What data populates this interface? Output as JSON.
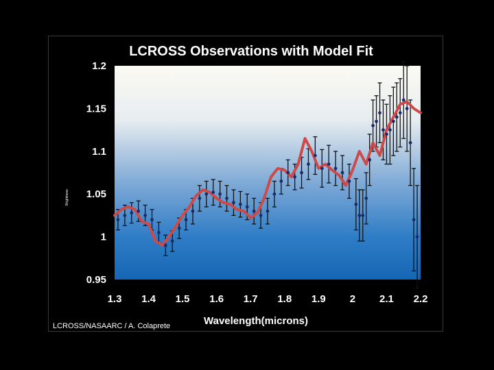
{
  "chart_data": {
    "type": "line",
    "title": "LCROSS Observations with Model Fit",
    "xlabel": "Wavelength(microns)",
    "ylabel": "Brightness",
    "credit": "LCROSS/NASAARC / A. Colaprete",
    "xlim": [
      1.3,
      2.2
    ],
    "ylim": [
      0.95,
      1.2
    ],
    "x_ticks": [
      "1.3",
      "1.4",
      "1.5",
      "1.6",
      "1.7",
      "1.8",
      "1.9",
      "2",
      "2.1",
      "2.2"
    ],
    "y_ticks": [
      "0.95",
      "1",
      "1.05",
      "1.1",
      "1.15",
      "1.2"
    ],
    "grid": false,
    "legend": "none",
    "colors": {
      "model": "#cc4a4a",
      "observed": "#1a2d6b",
      "error_bar": "#111111"
    },
    "series": [
      {
        "kind": "observed",
        "x": [
          1.31,
          1.33,
          1.35,
          1.37,
          1.39,
          1.41,
          1.43,
          1.45,
          1.47,
          1.49,
          1.51,
          1.53,
          1.55,
          1.57,
          1.59,
          1.61,
          1.63,
          1.65,
          1.67,
          1.69,
          1.71,
          1.73,
          1.75,
          1.77,
          1.79,
          1.81,
          1.83,
          1.85,
          1.87,
          1.89,
          1.91,
          1.93,
          1.95,
          1.97,
          1.99,
          2.01,
          2.02,
          2.03,
          2.04,
          2.05,
          2.06,
          2.07,
          2.08,
          2.09,
          2.1,
          2.11,
          2.12,
          2.13,
          2.14,
          2.15,
          2.16,
          2.17,
          2.18,
          2.19
        ],
        "y": [
          1.02,
          1.025,
          1.028,
          1.03,
          1.025,
          1.02,
          1.005,
          0.99,
          0.995,
          1.01,
          1.02,
          1.03,
          1.045,
          1.05,
          1.052,
          1.05,
          1.045,
          1.04,
          1.038,
          1.035,
          1.03,
          1.025,
          1.03,
          1.05,
          1.065,
          1.075,
          1.07,
          1.075,
          1.085,
          1.095,
          1.08,
          1.085,
          1.08,
          1.075,
          1.065,
          1.038,
          1.025,
          1.025,
          1.045,
          1.09,
          1.13,
          1.135,
          1.145,
          1.125,
          1.12,
          1.125,
          1.135,
          1.14,
          1.145,
          1.16,
          1.15,
          1.11,
          1.02,
          1.0
        ],
        "err": [
          0.012,
          0.012,
          0.012,
          0.012,
          0.012,
          0.012,
          0.012,
          0.012,
          0.012,
          0.012,
          0.012,
          0.015,
          0.015,
          0.015,
          0.015,
          0.015,
          0.015,
          0.015,
          0.015,
          0.015,
          0.015,
          0.015,
          0.015,
          0.015,
          0.015,
          0.015,
          0.015,
          0.018,
          0.018,
          0.022,
          0.022,
          0.022,
          0.02,
          0.02,
          0.02,
          0.03,
          0.03,
          0.03,
          0.03,
          0.03,
          0.03,
          0.03,
          0.035,
          0.035,
          0.035,
          0.04,
          0.04,
          0.04,
          0.04,
          0.045,
          0.05,
          0.05,
          0.06,
          0.06
        ]
      },
      {
        "kind": "model",
        "x": [
          1.3,
          1.32,
          1.34,
          1.36,
          1.38,
          1.4,
          1.42,
          1.44,
          1.46,
          1.48,
          1.5,
          1.52,
          1.54,
          1.56,
          1.58,
          1.6,
          1.62,
          1.64,
          1.66,
          1.68,
          1.7,
          1.72,
          1.74,
          1.76,
          1.78,
          1.8,
          1.82,
          1.84,
          1.86,
          1.88,
          1.9,
          1.92,
          1.94,
          1.96,
          1.98,
          2.0,
          2.02,
          2.04,
          2.06,
          2.08,
          2.1,
          2.12,
          2.14,
          2.16,
          2.18,
          2.2
        ],
        "y": [
          1.025,
          1.032,
          1.035,
          1.032,
          1.018,
          1.015,
          0.995,
          0.99,
          1.0,
          1.012,
          1.025,
          1.035,
          1.048,
          1.055,
          1.052,
          1.045,
          1.04,
          1.038,
          1.032,
          1.03,
          1.022,
          1.028,
          1.045,
          1.07,
          1.08,
          1.078,
          1.07,
          1.085,
          1.115,
          1.1,
          1.08,
          1.085,
          1.078,
          1.072,
          1.06,
          1.078,
          1.1,
          1.085,
          1.11,
          1.095,
          1.125,
          1.14,
          1.155,
          1.158,
          1.15,
          1.145
        ]
      }
    ]
  }
}
